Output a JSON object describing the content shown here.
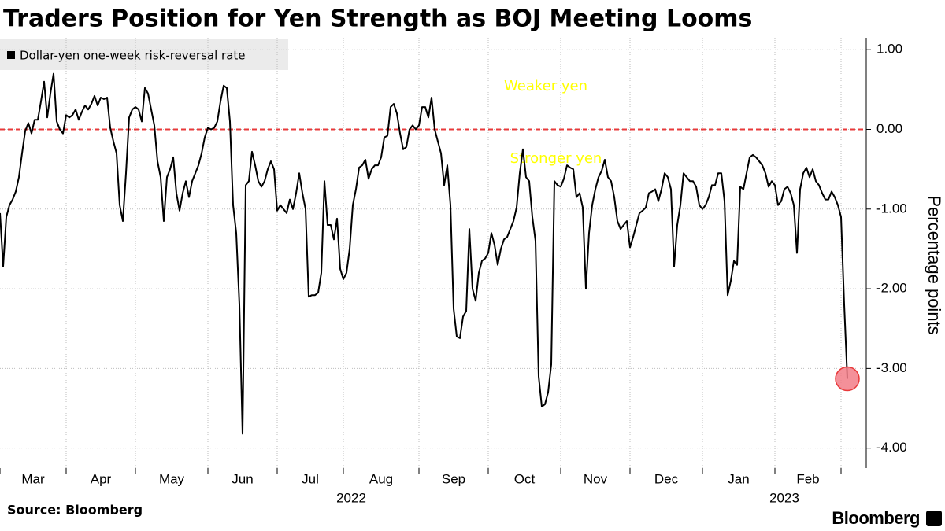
{
  "chart_data": {
    "type": "line",
    "title": "Traders Position for Yen Strength as BOJ Meeting Looms",
    "source": "Source: Bloomberg",
    "brand": "Bloomberg",
    "ylabel": "Percentage points",
    "annotations": [
      "Weaker yen",
      "Stronger yen"
    ],
    "annotation_color": "#ffff00",
    "reference_line": 0,
    "reference_color": "#e8393a",
    "highlight_color": "#f27c87",
    "grid": true,
    "xlim": [
      0,
      275
    ],
    "ylim": [
      -4.25,
      1.15
    ],
    "yticks": [
      {
        "value": 1,
        "label": "1.00"
      },
      {
        "value": 0,
        "label": "0.00"
      },
      {
        "value": -1,
        "label": "-1.00"
      },
      {
        "value": -2,
        "label": "-2.00"
      },
      {
        "value": -3,
        "label": "-3.00"
      },
      {
        "value": -4,
        "label": "-4.00"
      }
    ],
    "xticks": [
      0,
      21,
      43,
      66,
      88,
      109,
      133,
      155,
      178,
      200,
      223,
      246,
      267
    ],
    "months": [
      "Mar",
      "Apr",
      "May",
      "Jun",
      "Jul",
      "Aug",
      "Sep",
      "Oct",
      "Nov",
      "Dec",
      "Jan",
      "Feb"
    ],
    "years": [
      "2022",
      "2023"
    ],
    "series": [
      {
        "name": "Dollar-yen one-week risk-reversal rate",
        "color": "#000000",
        "values": [
          -1.05,
          -1.72,
          -1.1,
          -0.95,
          -0.88,
          -0.78,
          -0.6,
          -0.3,
          -0.02,
          0.08,
          -0.05,
          0.12,
          0.12,
          0.35,
          0.6,
          0.15,
          0.45,
          0.7,
          0.1,
          0.0,
          -0.05,
          0.18,
          0.15,
          0.18,
          0.25,
          0.12,
          0.22,
          0.3,
          0.25,
          0.32,
          0.42,
          0.3,
          0.4,
          0.38,
          0.4,
          0.02,
          -0.15,
          -0.3,
          -0.95,
          -1.15,
          -0.55,
          0.15,
          0.25,
          0.28,
          0.25,
          0.1,
          0.52,
          0.45,
          0.25,
          0.05,
          -0.4,
          -0.6,
          -1.15,
          -0.6,
          -0.5,
          -0.35,
          -0.8,
          -1.02,
          -0.8,
          -0.65,
          -0.85,
          -0.65,
          -0.55,
          -0.45,
          -0.3,
          -0.1,
          0.02,
          0.0,
          0.02,
          0.1,
          0.35,
          0.55,
          0.52,
          0.1,
          -0.95,
          -1.3,
          -2.2,
          -3.82,
          -0.7,
          -0.65,
          -0.28,
          -0.45,
          -0.65,
          -0.72,
          -0.65,
          -0.5,
          -0.4,
          -0.5,
          -1.02,
          -0.95,
          -1.0,
          -1.05,
          -0.88,
          -1.0,
          -0.8,
          -0.55,
          -0.8,
          -1.0,
          -2.1,
          -2.08,
          -2.08,
          -2.05,
          -1.8,
          -0.65,
          -1.2,
          -1.2,
          -1.38,
          -1.12,
          -1.75,
          -1.88,
          -1.8,
          -1.5,
          -0.95,
          -0.75,
          -0.48,
          -0.45,
          -0.38,
          -0.62,
          -0.5,
          -0.45,
          -0.45,
          -0.35,
          -0.1,
          -0.08,
          0.28,
          0.32,
          0.2,
          -0.05,
          -0.25,
          -0.22,
          0.0,
          0.05,
          0.0,
          0.05,
          0.28,
          0.28,
          0.15,
          0.4,
          0.0,
          -0.15,
          -0.3,
          -0.7,
          -0.45,
          -0.95,
          -2.25,
          -2.6,
          -2.62,
          -2.35,
          -2.28,
          -1.25,
          -2.0,
          -2.15,
          -1.8,
          -1.65,
          -1.62,
          -1.55,
          -1.3,
          -1.45,
          -1.7,
          -1.5,
          -1.38,
          -1.35,
          -1.25,
          -1.15,
          -0.98,
          -0.55,
          -0.25,
          -0.6,
          -0.65,
          -1.1,
          -1.4,
          -3.1,
          -3.48,
          -3.45,
          -3.3,
          -2.95,
          -0.65,
          -0.7,
          -0.72,
          -0.62,
          -0.45,
          -0.48,
          -0.5,
          -0.85,
          -0.8,
          -0.98,
          -2.0,
          -1.3,
          -0.95,
          -0.75,
          -0.6,
          -0.52,
          -0.38,
          -0.6,
          -0.65,
          -0.85,
          -1.15,
          -1.25,
          -1.2,
          -1.15,
          -1.48,
          -1.35,
          -1.2,
          -1.05,
          -1.02,
          -0.98,
          -0.8,
          -0.78,
          -0.75,
          -0.9,
          -0.75,
          -0.55,
          -0.6,
          -0.75,
          -1.72,
          -1.2,
          -0.95,
          -0.55,
          -0.6,
          -0.65,
          -0.65,
          -0.72,
          -0.95,
          -1.0,
          -0.95,
          -0.85,
          -0.7,
          -0.7,
          -0.55,
          -0.55,
          -0.9,
          -2.08,
          -1.9,
          -1.65,
          -1.7,
          -0.72,
          -0.75,
          -0.55,
          -0.35,
          -0.32,
          -0.35,
          -0.4,
          -0.45,
          -0.55,
          -0.72,
          -0.65,
          -0.7,
          -0.95,
          -0.9,
          -0.75,
          -0.72,
          -0.8,
          -0.95,
          -1.55,
          -0.75,
          -0.55,
          -0.48,
          -0.6,
          -0.5,
          -0.65,
          -0.7,
          -0.8,
          -0.88,
          -0.88,
          -0.78,
          -0.85,
          -0.95,
          -1.1,
          -2.2,
          -3.13
        ]
      }
    ]
  }
}
